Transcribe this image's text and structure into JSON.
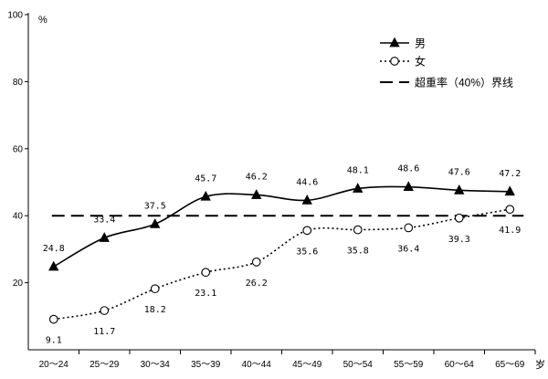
{
  "chart_data": {
    "type": "line",
    "categories": [
      "20～24",
      "25～29",
      "30～34",
      "35～39",
      "40～44",
      "45～49",
      "50～54",
      "55～59",
      "60～64",
      "65～69"
    ],
    "series": [
      {
        "name": "男",
        "values": [
          24.8,
          33.4,
          37.5,
          45.7,
          46.2,
          44.6,
          48.1,
          48.6,
          47.6,
          47.2
        ],
        "marker": "filled-triangle",
        "line_style": "solid",
        "label_position": "above",
        "color": "#000000"
      },
      {
        "name": "女",
        "values": [
          9.1,
          11.7,
          18.2,
          23.1,
          26.2,
          35.6,
          35.8,
          36.4,
          39.3,
          41.9
        ],
        "marker": "open-circle",
        "line_style": "dotted",
        "label_position": "below",
        "color": "#000000"
      }
    ],
    "reference_lines": [
      {
        "name": "超重率（40%）界线",
        "value": 40,
        "line_style": "dashed",
        "color": "#000000"
      }
    ],
    "xlabel": "岁",
    "ylabel": "%",
    "ylim": [
      0,
      100
    ],
    "yticks": [
      20,
      40,
      60,
      80,
      100
    ],
    "grid": false,
    "legend": "top-right"
  }
}
